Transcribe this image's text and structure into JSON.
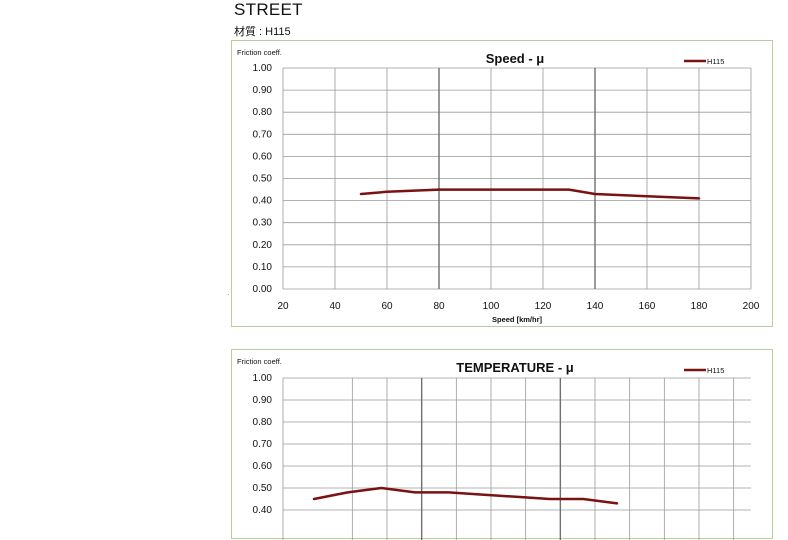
{
  "page": {
    "heading": "STREET",
    "material": "材質 : H115"
  },
  "colors": {
    "series": "#7a1212",
    "grid": "#9a9a9a",
    "border": "#b9cf9b"
  },
  "chart_data": [
    {
      "type": "line",
      "title": "Speed - μ",
      "ylabel": "Friction coeff.",
      "xlabel": "Speed  [km/hr]",
      "xlim": [
        20,
        200
      ],
      "ylim": [
        0,
        1
      ],
      "xticks": [
        "20",
        "40",
        "60",
        "80",
        "100",
        "120",
        "140",
        "160",
        "180",
        "200"
      ],
      "yticks": [
        "0.00",
        "0.10",
        "0.20",
        "0.30",
        "0.40",
        "0.50",
        "0.60",
        "0.70",
        "0.80",
        "0.90",
        "1.00"
      ],
      "grid": true,
      "legend": "top-right",
      "series": [
        {
          "name": "H115",
          "x": [
            50,
            60,
            80,
            100,
            120,
            130,
            140,
            150,
            160,
            180
          ],
          "y": [
            0.43,
            0.44,
            0.45,
            0.45,
            0.45,
            0.45,
            0.43,
            0.425,
            0.42,
            0.41
          ]
        }
      ]
    },
    {
      "type": "line",
      "title": "TEMPERATURE - μ",
      "ylabel": "Friction coeff.",
      "ylim": [
        0,
        1
      ],
      "yticks": [
        "0.40",
        "0.50",
        "0.60",
        "0.70",
        "0.80",
        "0.90",
        "1.00"
      ],
      "grid": true,
      "legend": "top-right",
      "series": [
        {
          "name": "H115",
          "x": [
            0,
            1,
            2,
            3,
            4,
            5,
            6,
            7,
            8,
            9
          ],
          "y": [
            0.45,
            0.48,
            0.5,
            0.48,
            0.48,
            0.47,
            0.46,
            0.45,
            0.45,
            0.43
          ]
        }
      ]
    }
  ]
}
